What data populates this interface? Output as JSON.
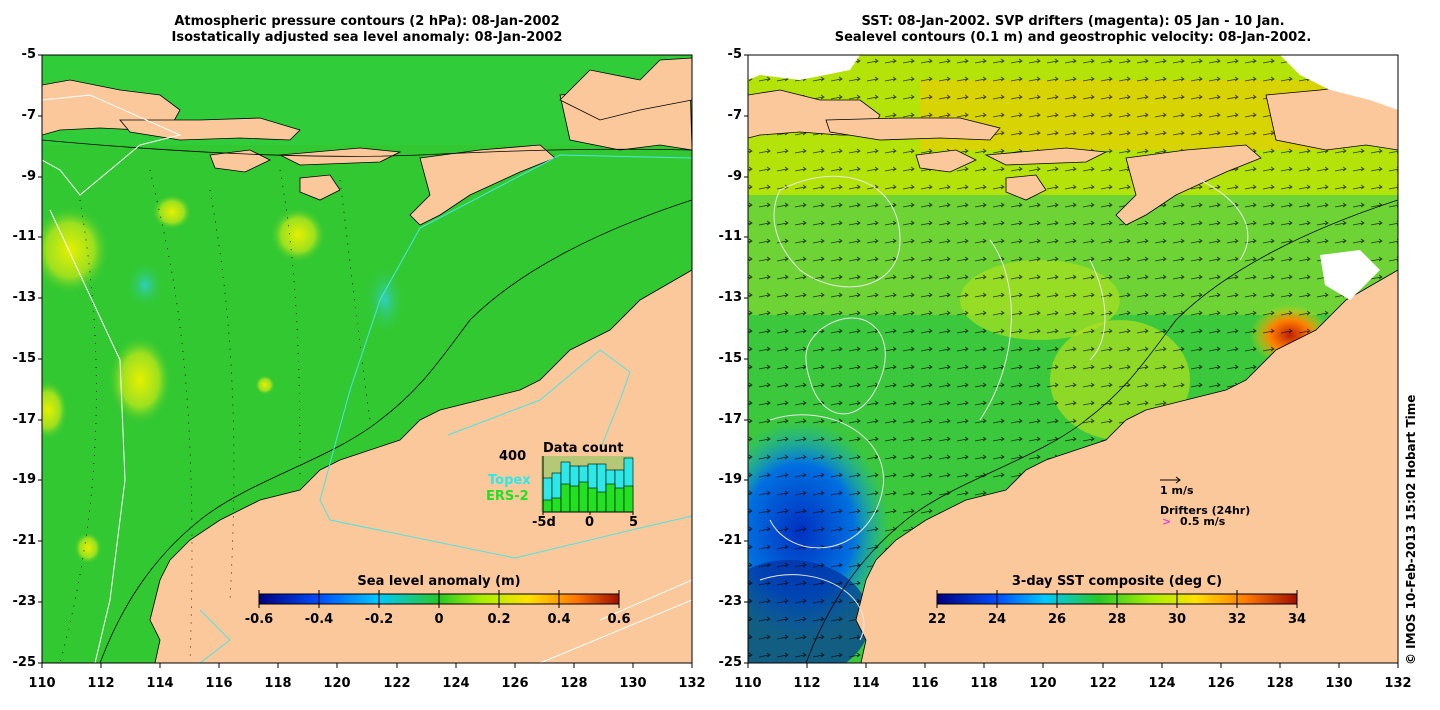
{
  "left_panel": {
    "title_line1": "Atmospheric pressure contours (2 hPa): 08-Jan-2002",
    "title_line2": "Isostatically adjusted sea level anomaly: 08-Jan-2002",
    "colorbar_label": "Sea level anomaly (m)",
    "colorbar_ticks": [
      "-0.6",
      "-0.4",
      "-0.2",
      "0",
      "0.2",
      "0.4",
      "0.6"
    ],
    "inset": {
      "title": "Data count",
      "y_label": "400",
      "series1": "Topex",
      "series2": "ERS-2",
      "x_ticks": [
        "-5d",
        "0",
        "5"
      ]
    }
  },
  "right_panel": {
    "title_line1": "SST: 08-Jan-2002. SVP drifters (magenta): 05 Jan - 10 Jan.",
    "title_line2": "Sealevel contours (0.1 m) and geostrophic velocity: 08-Jan-2002.",
    "colorbar_label": "3-day SST composite (deg C)",
    "colorbar_ticks": [
      "22",
      "24",
      "26",
      "28",
      "30",
      "32",
      "34"
    ],
    "velocity_scale_label": "1 m/s",
    "drifters_label": "Drifters (24hr)",
    "drifter_scale_label": "0.5 m/s"
  },
  "axes": {
    "y_ticks": [
      "-5",
      "-7",
      "-9",
      "-11",
      "-13",
      "-15",
      "-17",
      "-19",
      "-21",
      "-23",
      "-25"
    ],
    "x_ticks": [
      "110",
      "112",
      "114",
      "116",
      "118",
      "120",
      "122",
      "124",
      "126",
      "128",
      "130",
      "132"
    ]
  },
  "copyright": "© IMOS 10-Feb-2013 15:02 Hobart Time",
  "colors": {
    "land": "#fac89a",
    "ocean_green": "#32c832",
    "cyan_track": "#4ee4e4",
    "magenta": "#e040e0"
  }
}
